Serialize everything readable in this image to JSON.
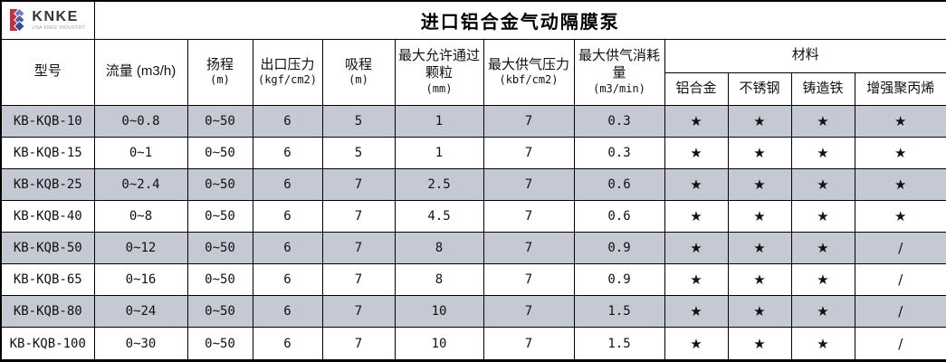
{
  "logo": {
    "brand": "KNKE",
    "tagline": "USA KNKE INDUSTRY",
    "colors": {
      "red": "#c4323f",
      "blue_light": "#6d7cc0",
      "blue": "#4c5ba6",
      "blue_dark": "#3a4890"
    }
  },
  "title": "进口铝合金气动隔膜泵",
  "table": {
    "colors": {
      "stripe": "#c5c9d3",
      "border": "#000000"
    },
    "columns": [
      {
        "label": "型号",
        "unit": ""
      },
      {
        "label": "流量 (m3/h)",
        "unit": ""
      },
      {
        "label": "扬程",
        "unit": "(m)"
      },
      {
        "label": "出口压力",
        "unit": "(kgf/cm2)"
      },
      {
        "label": "吸程",
        "unit": "(m)"
      },
      {
        "label": "最大允许通过颗粒",
        "unit": "(mm)"
      },
      {
        "label": "最大供气压力",
        "unit": "(kbf/cm2)"
      },
      {
        "label": "最大供气消耗量",
        "unit": "(m3/min)"
      }
    ],
    "materials_group_label": "材料",
    "material_columns": [
      "铝合金",
      "不锈钢",
      "铸造铁",
      "增强聚丙烯"
    ],
    "rows": [
      {
        "model": "KB-KQB-10",
        "flow": "0~0.8",
        "head": "0~50",
        "outlet": "6",
        "suction": "5",
        "particle": "1",
        "air_pressure": "7",
        "air_consumption": "0.3",
        "materials": [
          "★",
          "★",
          "★",
          "★"
        ]
      },
      {
        "model": "KB-KQB-15",
        "flow": "0~1",
        "head": "0~50",
        "outlet": "6",
        "suction": "5",
        "particle": "1",
        "air_pressure": "7",
        "air_consumption": "0.3",
        "materials": [
          "★",
          "★",
          "★",
          "★"
        ]
      },
      {
        "model": "KB-KQB-25",
        "flow": "0~2.4",
        "head": "0~50",
        "outlet": "6",
        "suction": "7",
        "particle": "2.5",
        "air_pressure": "7",
        "air_consumption": "0.6",
        "materials": [
          "★",
          "★",
          "★",
          "★"
        ]
      },
      {
        "model": "KB-KQB-40",
        "flow": "0~8",
        "head": "0~50",
        "outlet": "6",
        "suction": "7",
        "particle": "4.5",
        "air_pressure": "7",
        "air_consumption": "0.6",
        "materials": [
          "★",
          "★",
          "★",
          "★"
        ]
      },
      {
        "model": "KB-KQB-50",
        "flow": "0~12",
        "head": "0~50",
        "outlet": "6",
        "suction": "7",
        "particle": "8",
        "air_pressure": "7",
        "air_consumption": "0.9",
        "materials": [
          "★",
          "★",
          "★",
          "/"
        ]
      },
      {
        "model": "KB-KQB-65",
        "flow": "0~16",
        "head": "0~50",
        "outlet": "6",
        "suction": "7",
        "particle": "8",
        "air_pressure": "7",
        "air_consumption": "0.9",
        "materials": [
          "★",
          "★",
          "★",
          "/"
        ]
      },
      {
        "model": "KB-KQB-80",
        "flow": "0~24",
        "head": "0~50",
        "outlet": "6",
        "suction": "7",
        "particle": "10",
        "air_pressure": "7",
        "air_consumption": "1.5",
        "materials": [
          "★",
          "★",
          "★",
          "/"
        ]
      },
      {
        "model": "KB-KQB-100",
        "flow": "0~30",
        "head": "0~50",
        "outlet": "6",
        "suction": "7",
        "particle": "10",
        "air_pressure": "7",
        "air_consumption": "1.5",
        "materials": [
          "★",
          "★",
          "★",
          "/"
        ]
      }
    ]
  }
}
